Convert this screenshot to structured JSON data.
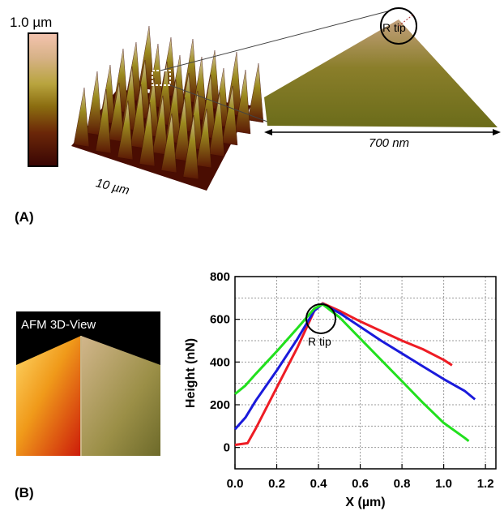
{
  "panel_a": {
    "label": "(A)",
    "scale_max": "1.0 µm",
    "width_label": "10 µm",
    "zoom_width_label": "700 nm",
    "tip_label": "R tip"
  },
  "panel_b": {
    "label": "(B)",
    "afm_title": "AFM 3D-View",
    "tip_label": "R tip"
  },
  "colors": {
    "red": "#ee1c24",
    "blue": "#1a1adb",
    "green": "#22e01e",
    "grid": "#9a9a9a"
  },
  "chart_data": {
    "type": "line",
    "xlabel": "X (µm)",
    "ylabel": "Height (nN)",
    "xlim": [
      0.0,
      1.25
    ],
    "ylim": [
      -100,
      800
    ],
    "xticks": [
      "0.0",
      "0.2",
      "0.4",
      "0.6",
      "0.8",
      "1.0",
      "1.2"
    ],
    "yticks": [
      "0",
      "200",
      "400",
      "600",
      "800"
    ],
    "grid": true,
    "series": [
      {
        "color": "red",
        "x": [
          0.0,
          0.06,
          0.1,
          0.2,
          0.3,
          0.38,
          0.42,
          0.5,
          0.6,
          0.7,
          0.8,
          0.9,
          1.0,
          1.04
        ],
        "y": [
          12,
          20,
          90,
          280,
          470,
          640,
          675,
          640,
          590,
          545,
          500,
          460,
          410,
          385
        ]
      },
      {
        "color": "blue",
        "x": [
          0.0,
          0.05,
          0.1,
          0.2,
          0.3,
          0.38,
          0.42,
          0.5,
          0.6,
          0.7,
          0.8,
          0.9,
          1.0,
          1.1,
          1.15
        ],
        "y": [
          85,
          140,
          220,
          360,
          510,
          640,
          672,
          630,
          565,
          500,
          440,
          380,
          320,
          265,
          225
        ]
      },
      {
        "color": "green",
        "x": [
          0.0,
          0.05,
          0.1,
          0.2,
          0.3,
          0.38,
          0.42,
          0.5,
          0.6,
          0.7,
          0.8,
          0.9,
          1.0,
          1.1,
          1.12
        ],
        "y": [
          250,
          290,
          345,
          450,
          560,
          650,
          670,
          610,
          510,
          410,
          310,
          210,
          115,
          45,
          30
        ]
      }
    ]
  }
}
